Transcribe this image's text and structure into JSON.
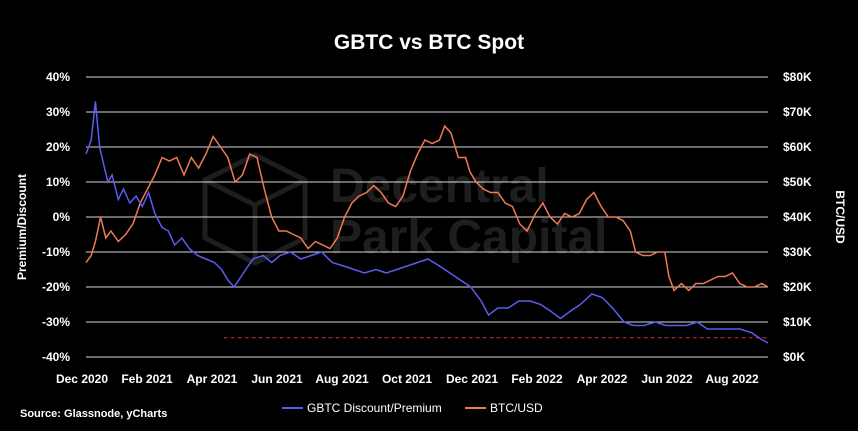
{
  "chart_data": {
    "type": "line",
    "title": "GBTC vs BTC Spot",
    "ylabel_left": "Premium/Discount",
    "ylabel_right": "BTC/USD",
    "source": "Source: Glassnode, yCharts",
    "watermark": [
      "Decentral",
      "Park Capital"
    ],
    "x_ticks": [
      "Dec 2020",
      "Feb 2021",
      "Apr 2021",
      "Jun 2021",
      "Aug 2021",
      "Oct 2021",
      "Dec 2021",
      "Feb 2022",
      "Apr 2022",
      "Jun 2022",
      "Aug 2022"
    ],
    "y_left_ticks": [
      "40%",
      "30%",
      "20%",
      "10%",
      "0%",
      "-10%",
      "-20%",
      "-30%",
      "-40%"
    ],
    "y_right_ticks": [
      "$80K",
      "$70K",
      "$60K",
      "$50K",
      "$40K",
      "$30K",
      "$20K",
      "$10K",
      "$0K"
    ],
    "y_left_range": [
      -40,
      40
    ],
    "y_right_range": [
      0,
      80000
    ],
    "reference_line": {
      "value": -34.5,
      "style": "dashed",
      "color": "#d22d2d"
    },
    "legend_position": "bottom-center",
    "series": [
      {
        "name": "GBTC Discount/Premium",
        "axis": "left",
        "color": "#5b5cf0",
        "points": [
          [
            "2020-12-01",
            18
          ],
          [
            "2020-12-06",
            22
          ],
          [
            "2020-12-10",
            33
          ],
          [
            "2020-12-14",
            20
          ],
          [
            "2020-12-18",
            15
          ],
          [
            "2020-12-22",
            10
          ],
          [
            "2020-12-26",
            12
          ],
          [
            "2021-01-01",
            5
          ],
          [
            "2021-01-06",
            8
          ],
          [
            "2021-01-12",
            4
          ],
          [
            "2021-01-18",
            6
          ],
          [
            "2021-01-24",
            3
          ],
          [
            "2021-01-30",
            7
          ],
          [
            "2021-02-05",
            1
          ],
          [
            "2021-02-12",
            -3
          ],
          [
            "2021-02-18",
            -4
          ],
          [
            "2021-02-24",
            -8
          ],
          [
            "2021-03-03",
            -6
          ],
          [
            "2021-03-10",
            -9
          ],
          [
            "2021-03-18",
            -11
          ],
          [
            "2021-03-26",
            -12
          ],
          [
            "2021-04-03",
            -13
          ],
          [
            "2021-04-10",
            -15
          ],
          [
            "2021-04-16",
            -18
          ],
          [
            "2021-04-22",
            -20
          ],
          [
            "2021-05-01",
            -16
          ],
          [
            "2021-05-10",
            -12
          ],
          [
            "2021-05-20",
            -11
          ],
          [
            "2021-05-28",
            -13
          ],
          [
            "2021-06-05",
            -11
          ],
          [
            "2021-06-15",
            -10
          ],
          [
            "2021-06-25",
            -12
          ],
          [
            "2021-07-05",
            -11
          ],
          [
            "2021-07-15",
            -10
          ],
          [
            "2021-07-25",
            -13
          ],
          [
            "2021-08-05",
            -14
          ],
          [
            "2021-08-15",
            -15
          ],
          [
            "2021-08-25",
            -16
          ],
          [
            "2021-09-05",
            -15
          ],
          [
            "2021-09-15",
            -16
          ],
          [
            "2021-09-25",
            -15
          ],
          [
            "2021-10-05",
            -14
          ],
          [
            "2021-10-15",
            -13
          ],
          [
            "2021-10-25",
            -12
          ],
          [
            "2021-11-05",
            -14
          ],
          [
            "2021-11-15",
            -16
          ],
          [
            "2021-11-25",
            -18
          ],
          [
            "2021-12-05",
            -20
          ],
          [
            "2021-12-15",
            -24
          ],
          [
            "2021-12-22",
            -28
          ],
          [
            "2021-12-31",
            -26
          ],
          [
            "2022-01-10",
            -26
          ],
          [
            "2022-01-20",
            -24
          ],
          [
            "2022-01-31",
            -24
          ],
          [
            "2022-02-10",
            -25
          ],
          [
            "2022-02-20",
            -27
          ],
          [
            "2022-03-01",
            -29
          ],
          [
            "2022-03-10",
            -27
          ],
          [
            "2022-03-20",
            -25
          ],
          [
            "2022-03-31",
            -22
          ],
          [
            "2022-04-10",
            -23
          ],
          [
            "2022-04-20",
            -26
          ],
          [
            "2022-05-01",
            -30
          ],
          [
            "2022-05-10",
            -31
          ],
          [
            "2022-05-20",
            -31
          ],
          [
            "2022-05-31",
            -30
          ],
          [
            "2022-06-10",
            -31
          ],
          [
            "2022-06-20",
            -31
          ],
          [
            "2022-06-30",
            -31
          ],
          [
            "2022-07-10",
            -30
          ],
          [
            "2022-07-20",
            -32
          ],
          [
            "2022-07-31",
            -32
          ],
          [
            "2022-08-10",
            -32
          ],
          [
            "2022-08-20",
            -32
          ],
          [
            "2022-08-31",
            -33
          ],
          [
            "2022-09-10",
            -35
          ],
          [
            "2022-09-16",
            -36
          ]
        ]
      },
      {
        "name": "BTC/USD",
        "axis": "right",
        "color": "#f07a55",
        "points": [
          [
            "2020-12-01",
            27000
          ],
          [
            "2020-12-06",
            29000
          ],
          [
            "2020-12-10",
            33000
          ],
          [
            "2020-12-15",
            40000
          ],
          [
            "2020-12-20",
            34000
          ],
          [
            "2020-12-25",
            36000
          ],
          [
            "2021-01-01",
            33000
          ],
          [
            "2021-01-08",
            35000
          ],
          [
            "2021-01-15",
            38000
          ],
          [
            "2021-01-22",
            44000
          ],
          [
            "2021-01-29",
            48000
          ],
          [
            "2021-02-05",
            52000
          ],
          [
            "2021-02-12",
            57000
          ],
          [
            "2021-02-19",
            56000
          ],
          [
            "2021-02-26",
            57000
          ],
          [
            "2021-03-05",
            52000
          ],
          [
            "2021-03-12",
            57000
          ],
          [
            "2021-03-19",
            54000
          ],
          [
            "2021-03-26",
            58000
          ],
          [
            "2021-04-02",
            63000
          ],
          [
            "2021-04-09",
            60000
          ],
          [
            "2021-04-16",
            57000
          ],
          [
            "2021-04-23",
            50000
          ],
          [
            "2021-04-30",
            52000
          ],
          [
            "2021-05-07",
            58000
          ],
          [
            "2021-05-14",
            57000
          ],
          [
            "2021-05-21",
            48000
          ],
          [
            "2021-05-28",
            40000
          ],
          [
            "2021-06-04",
            36000
          ],
          [
            "2021-06-11",
            36000
          ],
          [
            "2021-06-18",
            35000
          ],
          [
            "2021-06-25",
            34000
          ],
          [
            "2021-07-02",
            31000
          ],
          [
            "2021-07-09",
            33000
          ],
          [
            "2021-07-16",
            32000
          ],
          [
            "2021-07-23",
            31000
          ],
          [
            "2021-07-30",
            34000
          ],
          [
            "2021-08-06",
            40000
          ],
          [
            "2021-08-13",
            44000
          ],
          [
            "2021-08-20",
            46000
          ],
          [
            "2021-08-27",
            47000
          ],
          [
            "2021-09-03",
            49000
          ],
          [
            "2021-09-10",
            47000
          ],
          [
            "2021-09-17",
            44000
          ],
          [
            "2021-09-24",
            43000
          ],
          [
            "2021-10-01",
            46000
          ],
          [
            "2021-10-08",
            53000
          ],
          [
            "2021-10-15",
            58000
          ],
          [
            "2021-10-22",
            62000
          ],
          [
            "2021-10-29",
            61000
          ],
          [
            "2021-11-05",
            62000
          ],
          [
            "2021-11-10",
            66000
          ],
          [
            "2021-11-16",
            64000
          ],
          [
            "2021-11-23",
            57000
          ],
          [
            "2021-11-30",
            57000
          ],
          [
            "2021-12-04",
            53000
          ],
          [
            "2021-12-10",
            50000
          ],
          [
            "2021-12-17",
            48000
          ],
          [
            "2021-12-24",
            47000
          ],
          [
            "2021-12-31",
            47000
          ],
          [
            "2022-01-07",
            44000
          ],
          [
            "2022-01-14",
            43000
          ],
          [
            "2022-01-21",
            38000
          ],
          [
            "2022-01-28",
            36000
          ],
          [
            "2022-02-05",
            41000
          ],
          [
            "2022-02-12",
            44000
          ],
          [
            "2022-02-19",
            40000
          ],
          [
            "2022-02-26",
            38000
          ],
          [
            "2022-03-05",
            41000
          ],
          [
            "2022-03-12",
            40000
          ],
          [
            "2022-03-19",
            41000
          ],
          [
            "2022-03-26",
            45000
          ],
          [
            "2022-04-02",
            47000
          ],
          [
            "2022-04-09",
            43000
          ],
          [
            "2022-04-16",
            40000
          ],
          [
            "2022-04-23",
            40000
          ],
          [
            "2022-04-30",
            39000
          ],
          [
            "2022-05-07",
            36000
          ],
          [
            "2022-05-12",
            30000
          ],
          [
            "2022-05-19",
            29000
          ],
          [
            "2022-05-26",
            29000
          ],
          [
            "2022-06-02",
            30000
          ],
          [
            "2022-06-09",
            30000
          ],
          [
            "2022-06-13",
            23000
          ],
          [
            "2022-06-18",
            19000
          ],
          [
            "2022-06-25",
            21000
          ],
          [
            "2022-07-02",
            19000
          ],
          [
            "2022-07-09",
            21000
          ],
          [
            "2022-07-16",
            21000
          ],
          [
            "2022-07-23",
            22000
          ],
          [
            "2022-07-30",
            23000
          ],
          [
            "2022-08-06",
            23000
          ],
          [
            "2022-08-13",
            24000
          ],
          [
            "2022-08-20",
            21000
          ],
          [
            "2022-08-27",
            20000
          ],
          [
            "2022-09-03",
            20000
          ],
          [
            "2022-09-10",
            21000
          ],
          [
            "2022-09-16",
            20000
          ]
        ]
      }
    ]
  }
}
